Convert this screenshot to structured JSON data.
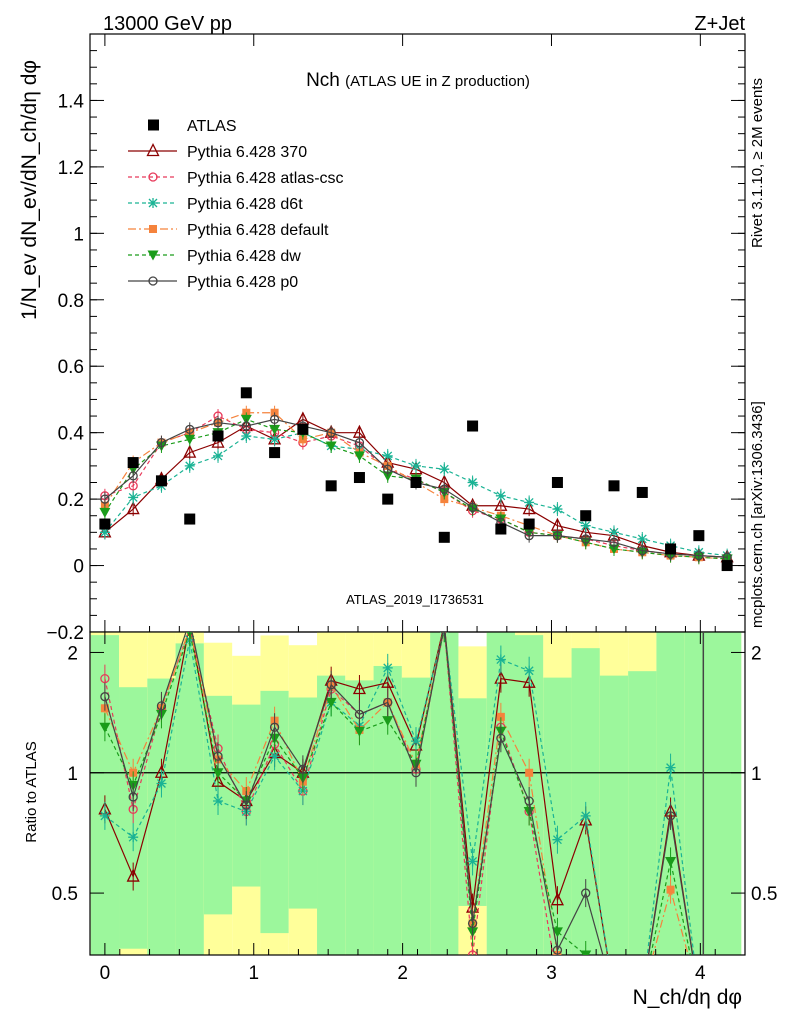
{
  "header": {
    "left": "13000 GeV pp",
    "right": "Z+Jet"
  },
  "side": {
    "top": "Rivet 3.1.10, ≥ 2M events",
    "bottom": "mcplots.cern.ch [arXiv:1306.3436]"
  },
  "watermark": "ATLAS_2019_I1736531",
  "chart_data": {
    "type": "line",
    "title_main": "Nch",
    "title_sub": "(ATLAS UE in Z production)",
    "xlabel": "N_ch/dη dφ",
    "ylabel": "1/N_ev dN_ev/dN_ch/dη dφ",
    "ratio_ylabel": "Ratio to ATLAS",
    "xlim": [
      -0.1,
      4.3
    ],
    "ylim": [
      -0.2,
      1.6
    ],
    "ratio_ylim": [
      0.35,
      2.25
    ],
    "x_ticks": [
      "0",
      "1",
      "2",
      "3",
      "4"
    ],
    "y_ticks": [
      "−0.2",
      "0",
      "0.2",
      "0.4",
      "0.6",
      "0.8",
      "1",
      "1.2",
      "1.4"
    ],
    "ratio_ticks": [
      "0.5",
      "1",
      "2"
    ],
    "x": [
      0.0,
      0.19,
      0.38,
      0.57,
      0.76,
      0.95,
      1.14,
      1.33,
      1.52,
      1.71,
      1.9,
      2.09,
      2.28,
      2.47,
      2.66,
      2.85,
      3.04,
      3.23,
      3.42,
      3.61,
      3.8,
      3.99,
      4.18
    ],
    "data": {
      "name": "ATLAS",
      "values": [
        0.125,
        0.31,
        0.255,
        0.14,
        0.39,
        0.52,
        0.34,
        0.41,
        0.24,
        0.265,
        0.2,
        0.25,
        0.085,
        0.42,
        0.11,
        0.125,
        0.25,
        0.15,
        0.24,
        0.22,
        0.05,
        0.09,
        0.0
      ]
    },
    "series": [
      {
        "name": "Pythia 6.428 370",
        "color": "#8b0000",
        "marker": "tri-open",
        "dash": "",
        "values": [
          0.1,
          0.17,
          0.26,
          0.34,
          0.37,
          0.42,
          0.38,
          0.44,
          0.4,
          0.4,
          0.31,
          0.29,
          0.25,
          0.18,
          0.18,
          0.17,
          0.12,
          0.1,
          0.09,
          0.06,
          0.04,
          0.03,
          0.025
        ]
      },
      {
        "name": "Pythia 6.428 atlas-csc",
        "color": "#e8395a",
        "marker": "circle-open",
        "dash": "4,3",
        "values": [
          0.21,
          0.24,
          0.37,
          0.4,
          0.45,
          0.41,
          0.4,
          0.37,
          0.39,
          0.36,
          0.29,
          0.26,
          0.22,
          0.165,
          0.14,
          0.1,
          0.09,
          0.08,
          0.06,
          0.045,
          0.035,
          0.03,
          0.025
        ]
      },
      {
        "name": "Pythia 6.428 d6t",
        "color": "#1ab394",
        "marker": "star",
        "dash": "4,3",
        "values": [
          0.1,
          0.205,
          0.24,
          0.3,
          0.33,
          0.39,
          0.38,
          0.4,
          0.36,
          0.35,
          0.33,
          0.3,
          0.29,
          0.25,
          0.21,
          0.19,
          0.17,
          0.12,
          0.1,
          0.08,
          0.06,
          0.04,
          0.03
        ]
      },
      {
        "name": "Pythia 6.428 default",
        "color": "#f5833c",
        "marker": "square",
        "dash": "8,3,2,3",
        "values": [
          0.18,
          0.31,
          0.37,
          0.4,
          0.43,
          0.46,
          0.46,
          0.38,
          0.4,
          0.34,
          0.3,
          0.25,
          0.2,
          0.175,
          0.15,
          0.12,
          0.09,
          0.07,
          0.05,
          0.04,
          0.03,
          0.025,
          0.02
        ]
      },
      {
        "name": "Pythia 6.428 dw",
        "color": "#1a9c1a",
        "marker": "tri-down",
        "dash": "4,3",
        "values": [
          0.16,
          0.29,
          0.36,
          0.38,
          0.4,
          0.44,
          0.41,
          0.4,
          0.36,
          0.33,
          0.27,
          0.26,
          0.22,
          0.17,
          0.14,
          0.1,
          0.09,
          0.07,
          0.05,
          0.04,
          0.03,
          0.025,
          0.02
        ]
      },
      {
        "name": "Pythia 6.428 p0",
        "color": "#444444",
        "marker": "circle-open",
        "dash": "",
        "values": [
          0.2,
          0.27,
          0.37,
          0.41,
          0.43,
          0.42,
          0.44,
          0.42,
          0.4,
          0.37,
          0.29,
          0.25,
          0.23,
          0.175,
          0.13,
          0.09,
          0.09,
          0.08,
          0.07,
          0.045,
          0.035,
          0.03,
          0.025
        ]
      }
    ],
    "ratio_series": [
      {
        "name": "Pythia 6.428 370",
        "values": [
          0.81,
          0.55,
          1.0,
          2.35,
          0.95,
          0.85,
          1.12,
          1.0,
          1.7,
          1.62,
          1.68,
          1.17,
          2.35,
          0.46,
          1.72,
          1.68,
          0.48,
          0.76,
          0.0,
          0.0,
          0.8,
          0.0,
          0.0
        ]
      },
      {
        "name": "Pythia 6.428 atlas-csc",
        "values": [
          1.72,
          0.81,
          1.45,
          2.3,
          1.15,
          0.8,
          1.18,
          0.9,
          1.62,
          1.4,
          1.5,
          1.02,
          2.3,
          0.35,
          1.3,
          0.8,
          0.3,
          0.3,
          0.0,
          0.0,
          0.3,
          0.0,
          0.0
        ]
      },
      {
        "name": "Pythia 6.428 d6t",
        "values": [
          0.78,
          0.69,
          0.94,
          2.15,
          0.85,
          0.8,
          1.1,
          0.9,
          1.5,
          1.31,
          1.83,
          1.2,
          2.3,
          0.6,
          1.92,
          1.8,
          0.68,
          0.78,
          0.0,
          0.0,
          1.03,
          0.0,
          0.0
        ]
      },
      {
        "name": "Pythia 6.428 default",
        "values": [
          1.45,
          1.0,
          1.45,
          2.3,
          1.08,
          0.9,
          1.35,
          0.95,
          1.65,
          1.28,
          1.5,
          1.05,
          2.35,
          0.42,
          1.38,
          1.0,
          0.35,
          0.3,
          0.0,
          0.0,
          0.51,
          0.0,
          0.0
        ]
      },
      {
        "name": "Pythia 6.428 dw",
        "values": [
          1.3,
          0.93,
          1.4,
          2.25,
          1.0,
          0.85,
          1.22,
          0.97,
          1.5,
          1.27,
          1.35,
          1.05,
          2.3,
          0.4,
          1.27,
          0.8,
          0.4,
          0.35,
          0.0,
          0.0,
          0.6,
          0.0,
          0.0
        ]
      },
      {
        "name": "Pythia 6.428 p0",
        "values": [
          1.55,
          0.87,
          1.47,
          2.4,
          1.1,
          0.83,
          1.3,
          1.02,
          1.66,
          1.4,
          1.5,
          1.0,
          2.35,
          0.42,
          1.22,
          0.85,
          0.36,
          0.5,
          0.0,
          0.0,
          0.78,
          0.0,
          0.0
        ]
      }
    ]
  }
}
